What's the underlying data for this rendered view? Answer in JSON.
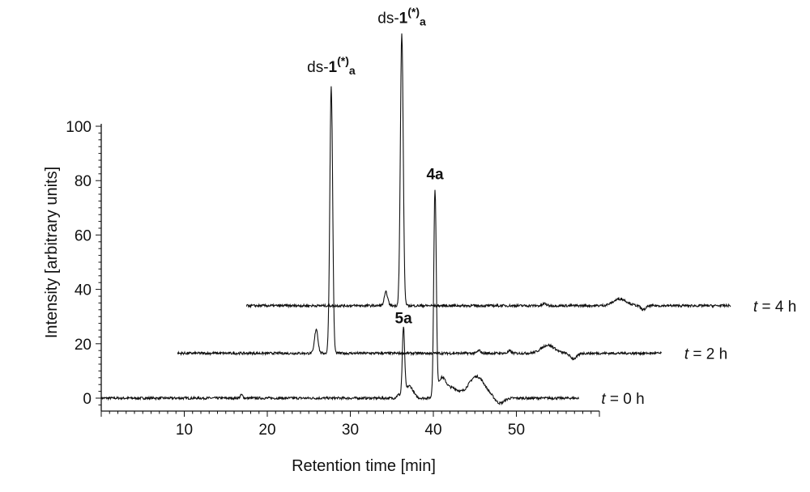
{
  "chart_data": {
    "type": "line",
    "title": "",
    "xlabel": "Retention time [min]",
    "ylabel": "Intensity [arbitrary units]",
    "xlim": [
      0,
      60
    ],
    "ylim": [
      -5,
      110
    ],
    "x_ticks": [
      10,
      20,
      30,
      40,
      50
    ],
    "y_ticks": [
      0,
      20,
      40,
      60,
      80,
      100
    ],
    "grid": false,
    "legend": "none",
    "line_color": "#111111",
    "series": [
      {
        "name": "t = 0 h",
        "label_parts": [
          "t",
          " = 0 h"
        ],
        "offset_x": 0,
        "offset_y": 0,
        "x_range": [
          0,
          57.5
        ],
        "peaks": [
          {
            "x": 16.9,
            "h": 1.2,
            "w": 0.15
          },
          {
            "x": 35.8,
            "h": 1.2,
            "w": 0.2
          },
          {
            "x": 36.4,
            "h": 25.0,
            "w": 0.14
          },
          {
            "x": 37.1,
            "h": 4.5,
            "w": 0.45
          },
          {
            "x": 40.2,
            "h": 75.0,
            "w": 0.15
          },
          {
            "x": 41.0,
            "h": 7.0,
            "w": 0.5
          },
          {
            "x": 42.3,
            "h": 3.5,
            "w": 0.7
          },
          {
            "x": 45.2,
            "h": 8.0,
            "w": 1.0
          }
        ],
        "dips": [
          {
            "x": 48.0,
            "h": -2.0,
            "w": 0.5
          }
        ]
      },
      {
        "name": "t = 2 h",
        "label_parts": [
          "t",
          " = 2 h"
        ],
        "offset_x": 9.2,
        "offset_y": 16.5,
        "x_range": [
          9.2,
          67.5
        ],
        "peaks": [
          {
            "x": 25.9,
            "h": 9.0,
            "w": 0.2
          },
          {
            "x": 27.7,
            "h": 98.0,
            "w": 0.17
          },
          {
            "x": 45.5,
            "h": 1.0,
            "w": 0.2
          },
          {
            "x": 49.2,
            "h": 0.8,
            "w": 0.2
          },
          {
            "x": 53.8,
            "h": 3.0,
            "w": 0.8
          }
        ],
        "dips": [
          {
            "x": 56.9,
            "h": -2.0,
            "w": 0.4
          }
        ]
      },
      {
        "name": "t = 4 h",
        "label_parts": [
          "t",
          " = 4 h"
        ],
        "offset_x": 17.5,
        "offset_y": 34.0,
        "x_range": [
          17.5,
          75.8
        ],
        "peaks": [
          {
            "x": 34.3,
            "h": 5.0,
            "w": 0.2
          },
          {
            "x": 36.2,
            "h": 100.0,
            "w": 0.17
          },
          {
            "x": 53.4,
            "h": 0.8,
            "w": 0.2
          },
          {
            "x": 62.5,
            "h": 2.5,
            "w": 0.8
          }
        ],
        "dips": [
          {
            "x": 65.3,
            "h": -1.5,
            "w": 0.3
          }
        ]
      }
    ],
    "annotations": [
      {
        "prefix": "ds-",
        "bold": "1",
        "sup": "(*)",
        "sub": "a",
        "x": 27.7,
        "y": 120
      },
      {
        "prefix": "ds-",
        "bold": "1",
        "sup": "(*)",
        "sub": "a",
        "x": 36.2,
        "y": 138
      },
      {
        "bold": "4a",
        "x": 40.2,
        "y": 80.5
      },
      {
        "bold": "5a",
        "x": 36.4,
        "y": 27.5
      }
    ]
  }
}
